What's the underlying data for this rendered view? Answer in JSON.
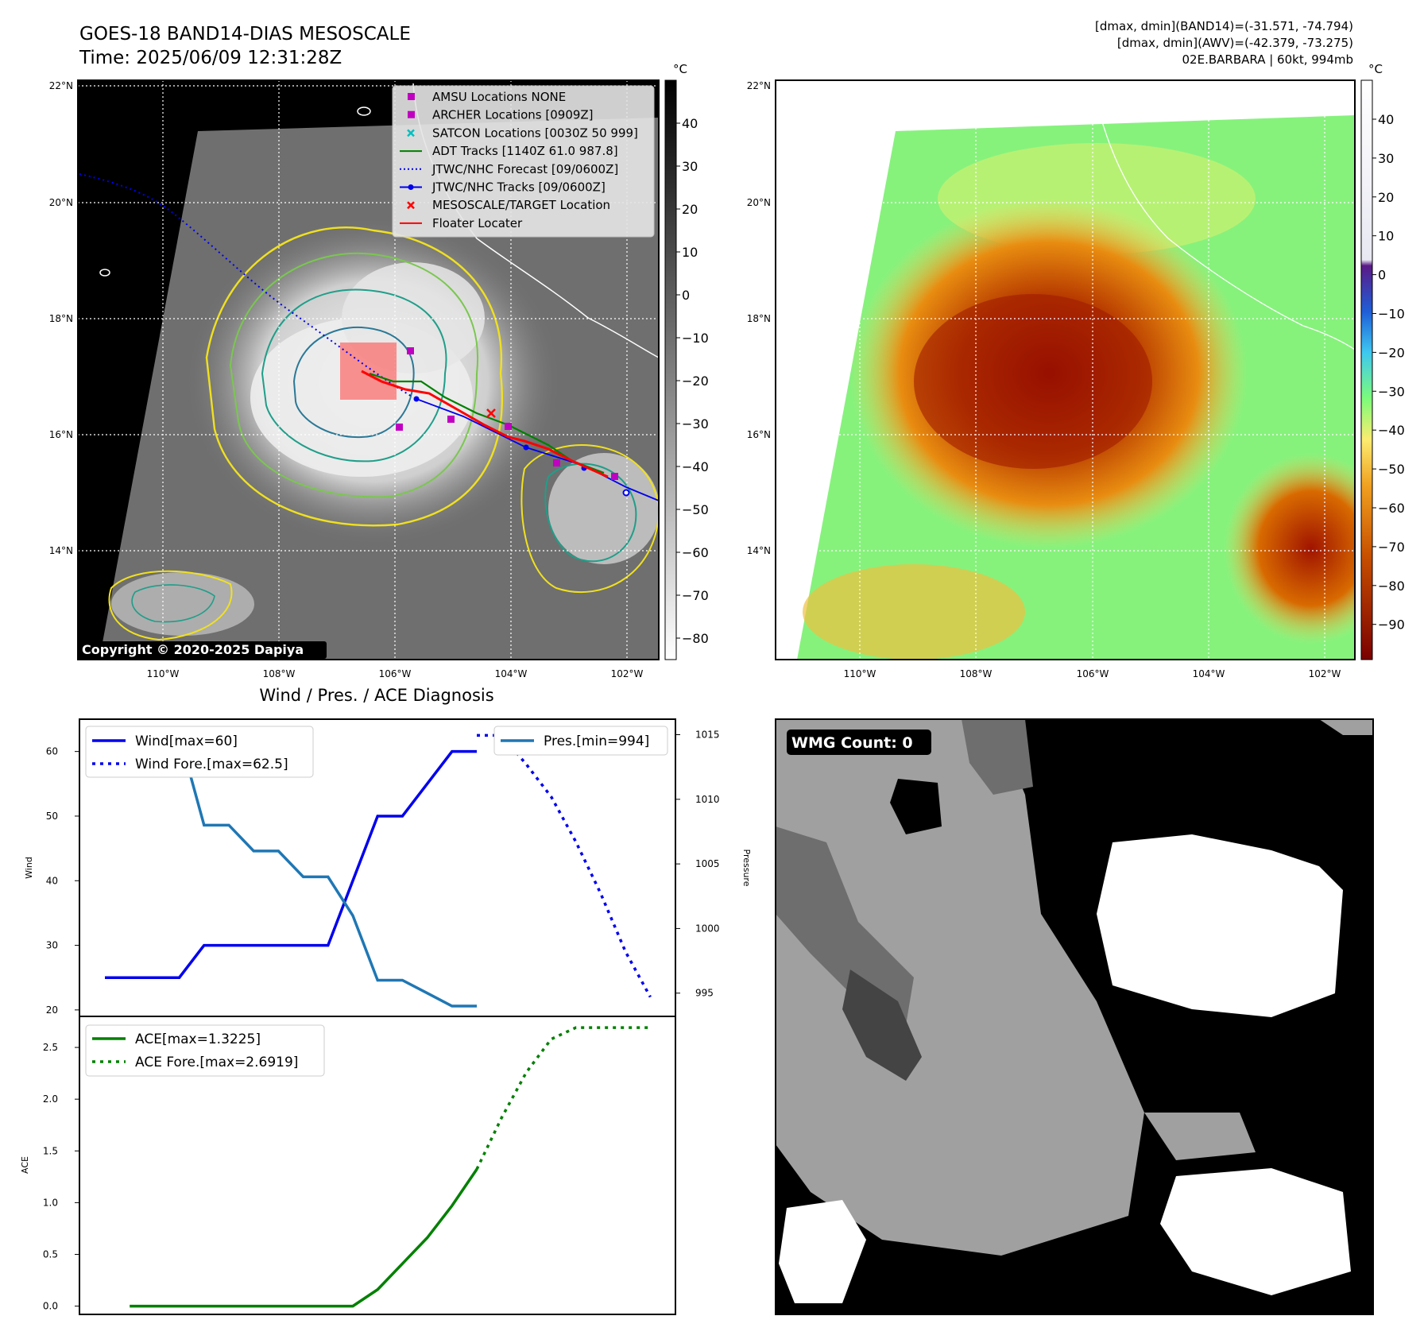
{
  "header": {
    "title_line1": "GOES-18 BAND14-DIAS MESOSCALE",
    "title_line2": "Time: 2025/06/09 12:31:28Z",
    "info_line1": "[dmax, dmin](BAND14)=(-31.571, -74.794)",
    "info_line2": "[dmax, dmin](AWV)=(-42.379, -73.275)",
    "info_line3": "02E.BARBARA | 60kt, 994mb"
  },
  "copyright": "Copyright © 2020-2025 Dapiya",
  "wmg_count": "WMG Count: 0",
  "colors": {
    "wind": "#0000ee",
    "pressure": "#1f77b4",
    "ace": "#008000",
    "floater": "#ff0000",
    "adt": "#008000",
    "satcon": "#00bfbf",
    "archer": "#c000c0"
  },
  "map_axes": {
    "lat_labels": [
      "22°N",
      "20°N",
      "18°N",
      "16°N",
      "14°N"
    ],
    "lon_labels": [
      "110°W",
      "108°W",
      "106°W",
      "104°W",
      "102°W"
    ]
  },
  "map_legend": [
    {
      "label": "AMSU Locations NONE",
      "marker": "square",
      "color": "#c000c0"
    },
    {
      "label": "ARCHER Locations [0909Z]",
      "marker": "square",
      "color": "#c000c0"
    },
    {
      "label": "SATCON Locations [0030Z 50 999]",
      "marker": "x",
      "color": "#00bfbf"
    },
    {
      "label": "ADT Tracks [1140Z 61.0 987.8]",
      "marker": "line",
      "color": "#008000"
    },
    {
      "label": "JTWC/NHC Forecast [09/0600Z]",
      "marker": "dotted",
      "color": "#0000ee"
    },
    {
      "label": "JTWC/NHC Tracks [09/0600Z]",
      "marker": "line-dot",
      "color": "#0000ee"
    },
    {
      "label": "MESOSCALE/TARGET Location",
      "marker": "x",
      "color": "#ff0000"
    },
    {
      "label": "Floater Locater",
      "marker": "line",
      "color": "#ff0000"
    }
  ],
  "colorbar_ir": {
    "unit": "°C",
    "ticks": [
      "40",
      "30",
      "20",
      "10",
      "0",
      "−10",
      "−20",
      "−30",
      "−40",
      "−50",
      "−60",
      "−70",
      "−80"
    ]
  },
  "colorbar_awv": {
    "unit": "°C",
    "ticks": [
      "40",
      "30",
      "20",
      "10",
      "0",
      "−10",
      "−20",
      "−30",
      "−40",
      "−50",
      "−60",
      "−70",
      "−80",
      "−90"
    ]
  },
  "diag_title": "Wind / Pres. / ACE Diagnosis",
  "chart_data": [
    {
      "type": "line",
      "ylabel": "Wind",
      "y2label": "Pressure",
      "ylim": [
        19,
        65
      ],
      "y2lim": [
        993.2,
        1016.2
      ],
      "yticks": [
        20,
        30,
        40,
        50,
        60
      ],
      "y2ticks": [
        995,
        1000,
        1005,
        1010,
        1015
      ],
      "x": [
        0,
        1,
        2,
        3,
        4,
        5,
        6,
        7,
        8,
        9,
        10,
        11,
        12,
        13,
        14,
        15,
        16,
        17,
        18,
        19,
        20,
        21,
        22
      ],
      "series": [
        {
          "name": "Wind[max=60]",
          "axis": "left",
          "style": "solid",
          "x": [
            0,
            1,
            2,
            3,
            4,
            5,
            6,
            7,
            8,
            9,
            10,
            11,
            12,
            13,
            14,
            15
          ],
          "values": [
            25,
            25,
            25,
            25,
            30,
            30,
            30,
            30,
            30,
            30,
            40,
            50,
            50,
            55,
            60,
            60
          ]
        },
        {
          "name": "Wind Fore.[max=62.5]",
          "axis": "left",
          "style": "dotted",
          "x": [
            15,
            16,
            17,
            18,
            19,
            20,
            21,
            22
          ],
          "values": [
            62.5,
            62.5,
            58,
            53,
            46,
            38,
            29,
            22
          ]
        },
        {
          "name": "Pres.[min=994]",
          "axis": "right",
          "style": "solid",
          "x": [
            1,
            2,
            3,
            4,
            5,
            6,
            7,
            8,
            9,
            10,
            11,
            12,
            13,
            14,
            15
          ],
          "values": [
            1015,
            1015,
            1015,
            1008,
            1008,
            1006,
            1006,
            1004,
            1004,
            1001,
            996,
            996,
            995,
            994,
            994
          ]
        }
      ],
      "legend_left": [
        "Wind[max=60]",
        "Wind Fore.[max=62.5]"
      ],
      "legend_right": [
        "Pres.[min=994]"
      ]
    },
    {
      "type": "line",
      "ylabel": "ACE",
      "ylim": [
        -0.08,
        2.8
      ],
      "yticks": [
        "0.0",
        "0.5",
        "1.0",
        "1.5",
        "2.0",
        "2.5"
      ],
      "series": [
        {
          "name": "ACE[max=1.3225]",
          "style": "solid",
          "x": [
            1,
            2,
            3,
            4,
            5,
            6,
            7,
            8,
            9,
            10,
            11,
            12,
            13,
            14,
            15
          ],
          "values": [
            0,
            0,
            0,
            0,
            0,
            0,
            0,
            0,
            0,
            0,
            0.16,
            0.41,
            0.66,
            0.97,
            1.3225
          ]
        },
        {
          "name": "ACE Fore.[max=2.6919]",
          "style": "dotted",
          "x": [
            15,
            16,
            17,
            18,
            19,
            20,
            21,
            22
          ],
          "values": [
            1.3225,
            1.82,
            2.26,
            2.58,
            2.6919,
            2.6919,
            2.6919,
            2.6919
          ]
        }
      ]
    }
  ]
}
